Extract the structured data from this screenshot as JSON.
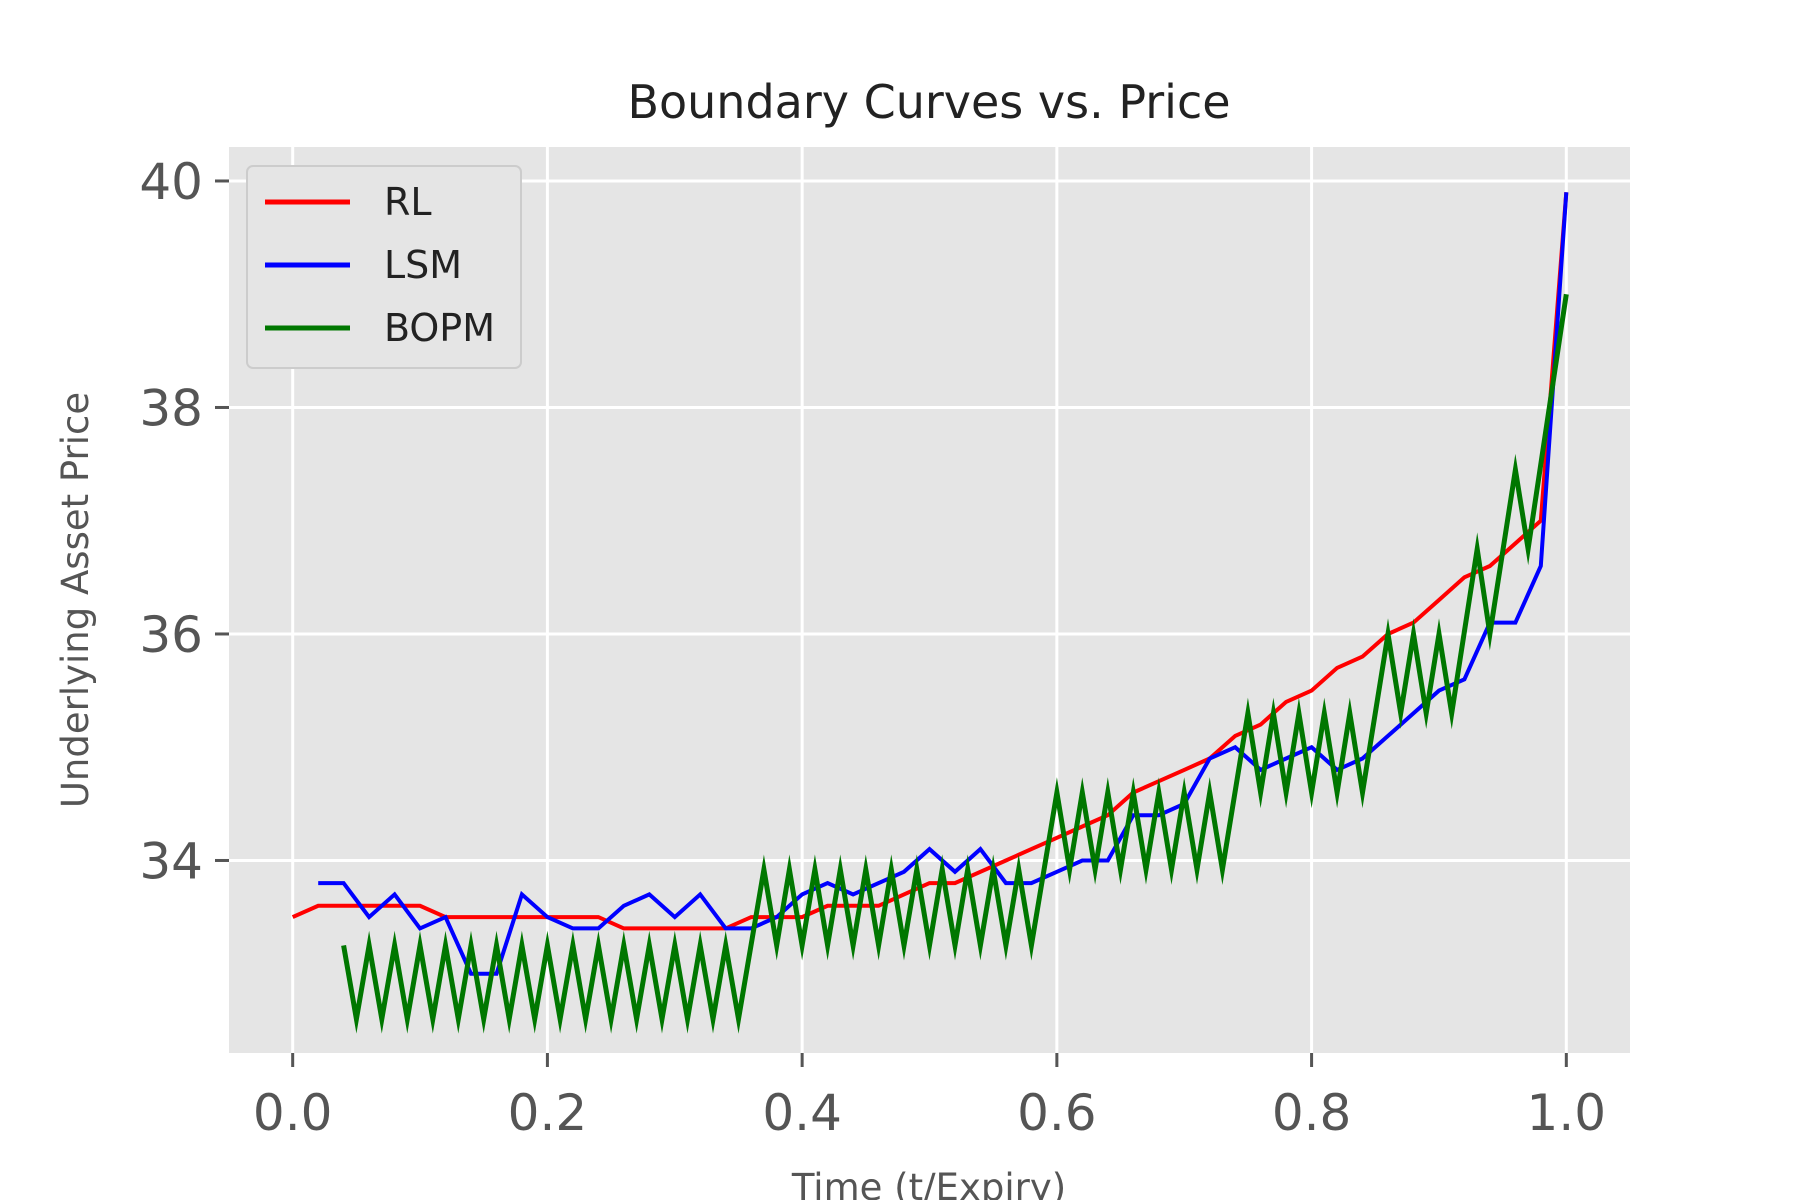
{
  "chart_data": {
    "type": "line",
    "title": "Boundary Curves vs. Price",
    "xlabel": "Time (t/Expiry)",
    "ylabel": "Underlying Asset Price",
    "xlim": [
      -0.05,
      1.05
    ],
    "ylim": [
      32.3,
      40.3
    ],
    "xticks": [
      0.0,
      0.2,
      0.4,
      0.6,
      0.8,
      1.0
    ],
    "xtick_labels": [
      "0.0",
      "0.2",
      "0.4",
      "0.6",
      "0.8",
      "1.0"
    ],
    "yticks": [
      34,
      36,
      38,
      40
    ],
    "ytick_labels": [
      "34",
      "36",
      "38",
      "40"
    ],
    "grid": true,
    "legend_position": "top-left",
    "series": [
      {
        "name": "RL",
        "color": "#ff0000",
        "x": [
          0.0,
          0.02,
          0.04,
          0.06,
          0.08,
          0.1,
          0.12,
          0.14,
          0.16,
          0.18,
          0.2,
          0.22,
          0.24,
          0.26,
          0.28,
          0.3,
          0.32,
          0.34,
          0.36,
          0.38,
          0.4,
          0.42,
          0.44,
          0.46,
          0.48,
          0.5,
          0.52,
          0.54,
          0.56,
          0.58,
          0.6,
          0.62,
          0.64,
          0.66,
          0.68,
          0.7,
          0.72,
          0.74,
          0.76,
          0.78,
          0.8,
          0.82,
          0.84,
          0.86,
          0.88,
          0.9,
          0.92,
          0.94,
          0.96,
          0.98,
          1.0
        ],
        "y": [
          33.5,
          33.6,
          33.6,
          33.6,
          33.6,
          33.6,
          33.5,
          33.5,
          33.5,
          33.5,
          33.5,
          33.5,
          33.5,
          33.4,
          33.4,
          33.4,
          33.4,
          33.4,
          33.5,
          33.5,
          33.5,
          33.6,
          33.6,
          33.6,
          33.7,
          33.8,
          33.8,
          33.9,
          34.0,
          34.1,
          34.2,
          34.3,
          34.4,
          34.6,
          34.7,
          34.8,
          34.9,
          35.1,
          35.2,
          35.4,
          35.5,
          35.7,
          35.8,
          36.0,
          36.1,
          36.3,
          36.5,
          36.6,
          36.8,
          37.0,
          39.9
        ]
      },
      {
        "name": "LSM",
        "color": "#0000ff",
        "x": [
          0.02,
          0.04,
          0.06,
          0.08,
          0.1,
          0.12,
          0.14,
          0.16,
          0.18,
          0.2,
          0.22,
          0.24,
          0.26,
          0.28,
          0.3,
          0.32,
          0.34,
          0.36,
          0.38,
          0.4,
          0.42,
          0.44,
          0.46,
          0.48,
          0.5,
          0.52,
          0.54,
          0.56,
          0.58,
          0.6,
          0.62,
          0.64,
          0.66,
          0.68,
          0.7,
          0.72,
          0.74,
          0.76,
          0.78,
          0.8,
          0.82,
          0.84,
          0.86,
          0.88,
          0.9,
          0.92,
          0.94,
          0.96,
          0.98,
          1.0
        ],
        "y": [
          33.8,
          33.8,
          33.5,
          33.7,
          33.4,
          33.5,
          33.0,
          33.0,
          33.7,
          33.5,
          33.4,
          33.4,
          33.6,
          33.7,
          33.5,
          33.7,
          33.4,
          33.4,
          33.5,
          33.7,
          33.8,
          33.7,
          33.8,
          33.9,
          34.1,
          33.9,
          34.1,
          33.8,
          33.8,
          33.9,
          34.0,
          34.0,
          34.4,
          34.4,
          34.5,
          34.9,
          35.0,
          34.8,
          34.9,
          35.0,
          34.8,
          34.9,
          35.1,
          35.3,
          35.5,
          35.6,
          36.1,
          36.1,
          36.6,
          39.9
        ]
      },
      {
        "name": "BOPM",
        "color": "#007700",
        "x": [
          0.04,
          0.05,
          0.06,
          0.07,
          0.08,
          0.09,
          0.1,
          0.11,
          0.12,
          0.13,
          0.14,
          0.15,
          0.16,
          0.17,
          0.18,
          0.19,
          0.2,
          0.21,
          0.22,
          0.23,
          0.24,
          0.25,
          0.26,
          0.27,
          0.28,
          0.29,
          0.3,
          0.31,
          0.32,
          0.33,
          0.34,
          0.35,
          0.37,
          0.38,
          0.39,
          0.4,
          0.41,
          0.42,
          0.43,
          0.44,
          0.45,
          0.46,
          0.47,
          0.48,
          0.49,
          0.5,
          0.51,
          0.52,
          0.53,
          0.54,
          0.55,
          0.56,
          0.57,
          0.58,
          0.6,
          0.61,
          0.62,
          0.63,
          0.64,
          0.65,
          0.66,
          0.67,
          0.68,
          0.69,
          0.7,
          0.71,
          0.72,
          0.73,
          0.75,
          0.76,
          0.77,
          0.78,
          0.79,
          0.8,
          0.81,
          0.82,
          0.83,
          0.84,
          0.86,
          0.87,
          0.88,
          0.89,
          0.9,
          0.91,
          0.93,
          0.94,
          0.96,
          0.97,
          1.0
        ],
        "y": [
          33.25,
          32.6,
          33.25,
          32.6,
          33.25,
          32.6,
          33.25,
          32.6,
          33.25,
          32.6,
          33.25,
          32.6,
          33.25,
          32.6,
          33.25,
          32.6,
          33.25,
          32.6,
          33.25,
          32.6,
          33.25,
          32.6,
          33.25,
          32.6,
          33.25,
          32.6,
          33.25,
          32.6,
          33.25,
          32.6,
          33.25,
          32.6,
          33.92,
          33.25,
          33.92,
          33.25,
          33.92,
          33.25,
          33.92,
          33.25,
          33.92,
          33.25,
          33.92,
          33.25,
          33.92,
          33.25,
          33.92,
          33.25,
          33.92,
          33.25,
          33.92,
          33.25,
          33.92,
          33.25,
          34.6,
          33.92,
          34.6,
          33.92,
          34.6,
          33.92,
          34.6,
          33.92,
          34.6,
          33.92,
          34.6,
          33.92,
          34.6,
          33.92,
          35.3,
          34.6,
          35.3,
          34.6,
          35.3,
          34.6,
          35.3,
          34.6,
          35.3,
          34.6,
          36.0,
          35.3,
          36.0,
          35.3,
          36.0,
          35.3,
          36.75,
          36.0,
          37.45,
          36.75,
          39.0
        ]
      }
    ]
  }
}
